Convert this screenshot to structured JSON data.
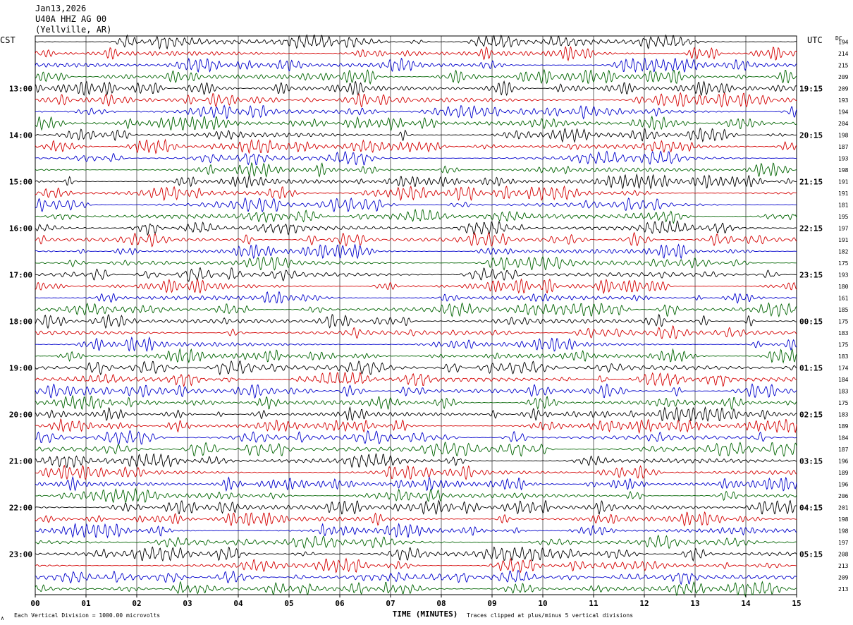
{
  "header": {
    "date": "Jan13,2026",
    "station": "U40A HHZ AG 00",
    "location": "(Yellville, AR)"
  },
  "left_tz": "CST",
  "right_tz": "UTC",
  "dc_label": "DC",
  "footer": {
    "scale_note": "Each Vertical Division = 1000.00 microvolts",
    "clip_note": "Traces clipped at plus/minus 5 vertical divisions",
    "corner_mark": "∧"
  },
  "colors": {
    "trace_cycle": [
      "#000000",
      "#d40000",
      "#0000cc",
      "#006400"
    ],
    "grid": "#000000",
    "background": "#ffffff"
  },
  "chart_data": {
    "type": "line",
    "subtype": "helicorder",
    "xlabel": "TIME (MINUTES)",
    "x_ticks": [
      "00",
      "01",
      "02",
      "03",
      "04",
      "05",
      "06",
      "07",
      "08",
      "09",
      "10",
      "11",
      "12",
      "13",
      "14",
      "15"
    ],
    "xlim": [
      0,
      15
    ],
    "rows_per_hour": 4,
    "left_hour_labels": [
      "13:00",
      "14:00",
      "15:00",
      "16:00",
      "17:00",
      "18:00",
      "19:00",
      "20:00",
      "21:00",
      "22:00",
      "23:00"
    ],
    "right_hour_labels": [
      "19:15",
      "20:15",
      "21:15",
      "22:15",
      "23:15",
      "00:15",
      "01:15",
      "02:15",
      "03:15",
      "04:15",
      "05:15"
    ],
    "dc_offsets": [
      194,
      214,
      215,
      209,
      209,
      193,
      194,
      204,
      198,
      187,
      193,
      198,
      191,
      191,
      181,
      195,
      197,
      191,
      182,
      175,
      193,
      180,
      161,
      185,
      175,
      183,
      175,
      183,
      174,
      184,
      183,
      175,
      183,
      189,
      184,
      187,
      196,
      189,
      196,
      206,
      201,
      198,
      198,
      197,
      208,
      213,
      209,
      213
    ]
  }
}
